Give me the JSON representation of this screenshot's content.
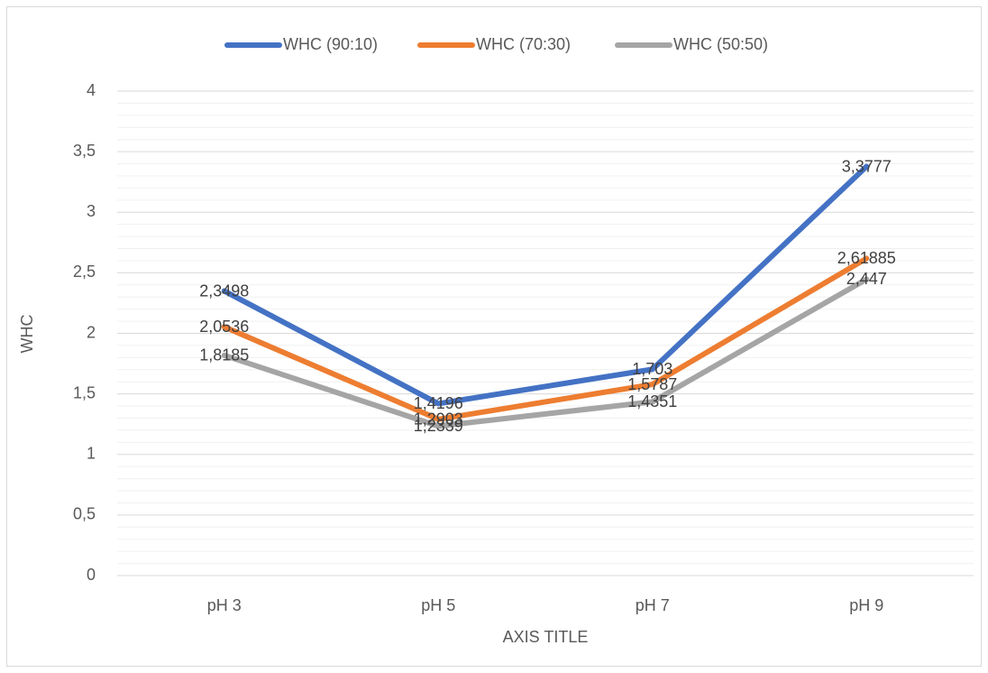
{
  "chart_data": {
    "type": "line",
    "x_label": "AXIS TITLE",
    "y_label": "WHC",
    "categories": [
      "pH 3",
      "pH 5",
      "pH 7",
      "pH 9"
    ],
    "series": [
      {
        "name": "WHC (90:10)",
        "color": "#4472c4",
        "values": [
          2.3498,
          1.4196,
          1.703,
          3.3777
        ],
        "value_labels": [
          "2,3498",
          "1,4196",
          "1,703",
          "3,3777"
        ]
      },
      {
        "name": "WHC (70:30)",
        "color": "#ed7d31",
        "values": [
          2.0536,
          1.2903,
          1.5787,
          2.61885
        ],
        "value_labels": [
          "2,0536",
          "1,2903",
          "1,5787",
          "2,61885"
        ]
      },
      {
        "name": "WHC (50:50)",
        "color": "#a5a5a5",
        "values": [
          1.8185,
          1.2339,
          1.4351,
          2.447
        ],
        "value_labels": [
          "1,8185",
          "1,2339",
          "1,4351",
          "2,447"
        ]
      }
    ],
    "ylim": [
      0,
      4
    ],
    "yticks": [
      0,
      {
        "value": 0.5,
        "label": "0,5"
      },
      1,
      {
        "value": 1.5,
        "label": "1,5"
      },
      2,
      {
        "value": 2.5,
        "label": "2,5"
      },
      3,
      {
        "value": 3.5,
        "label": "3,5"
      },
      4
    ],
    "grid": true,
    "minor_grid": true,
    "legend": "top"
  }
}
